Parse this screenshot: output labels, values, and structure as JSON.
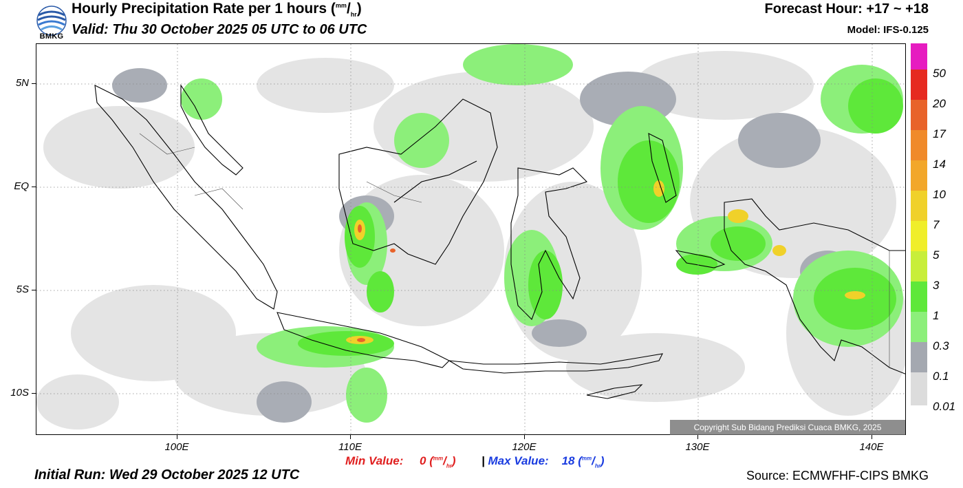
{
  "header": {
    "logo_text": "BMKG",
    "title": "Hourly Precipitation Rate per 1 hours",
    "title_unit_num": "mm",
    "title_unit_den": "hr",
    "valid": "Valid: Thu 30 October 2025 05 UTC to 06 UTC",
    "forecast_hour": "Forecast Hour: +17 ~ +18",
    "model": "Model: IFS-0.125"
  },
  "axes": {
    "y_labels": [
      "5N",
      "EQ",
      "5S",
      "10S"
    ],
    "x_labels": [
      "100E",
      "110E",
      "120E",
      "130E",
      "140E"
    ]
  },
  "map": {
    "copyright": "Copyright Sub Bidang Prediksi Cuaca BMKG, 2025"
  },
  "legend": {
    "labels": [
      "50",
      "20",
      "17",
      "14",
      "10",
      "7",
      "5",
      "3",
      "1",
      "0.3",
      "0.1",
      "0.01"
    ],
    "colors": [
      "#e61cc0",
      "#e62a20",
      "#e8632a",
      "#f08a2a",
      "#f2a72a",
      "#f0d12a",
      "#f0ee2a",
      "#c8ee3a",
      "#5ee83a",
      "#8cef7a",
      "#a4a8b0",
      "#d6d6d6",
      "#ececec"
    ]
  },
  "footer": {
    "min_label": "Min Value:",
    "min_value": "0",
    "max_label": "Max Value:",
    "max_value": "18",
    "separator": "|",
    "unit_num": "mm",
    "unit_den": "hr",
    "initial_run": "Initial Run: Wed 29 October 2025 12 UTC",
    "source": "Source: ECMWFHF-CIPS BMKG"
  }
}
